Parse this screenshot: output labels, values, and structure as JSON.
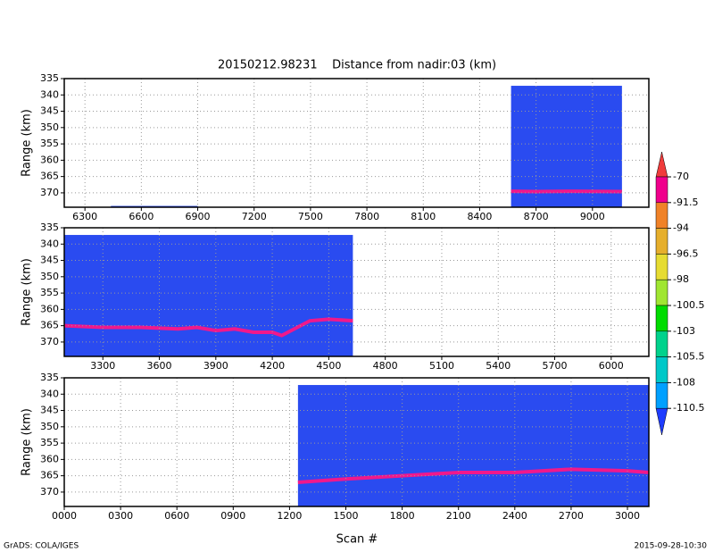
{
  "page": {
    "title": "20150212.98231    Distance from nadir:03 (km)",
    "xlabel": "Scan #",
    "footer_left": "GrADS: COLA/IGES",
    "footer_right": "2015-09-28-10:30"
  },
  "chart_data": [
    {
      "type": "curtain",
      "ylabel": "Range (km)",
      "xlim": [
        6190,
        9300
      ],
      "ylim": [
        374.4,
        335
      ],
      "xticks": [
        6300,
        6600,
        6900,
        7200,
        7500,
        7800,
        8100,
        8400,
        8700,
        9000
      ],
      "yticks": [
        335,
        340,
        345,
        350,
        355,
        360,
        365,
        370
      ],
      "grid": true,
      "color": "#2a4bf0",
      "coverage": [
        {
          "x": [
            6438,
            6900
          ],
          "top": 374.0
        },
        {
          "x": [
            8567,
            9157
          ],
          "top": 337.2
        }
      ],
      "series": [
        {
          "color": "#f0188c",
          "x": [
            8567,
            8700,
            8900,
            9157
          ],
          "values": [
            369.5,
            369.6,
            369.5,
            369.6
          ]
        }
      ]
    },
    {
      "type": "curtain",
      "ylabel": "Range (km)",
      "xlim": [
        3095,
        6200
      ],
      "ylim": [
        374.4,
        335
      ],
      "xticks": [
        3300,
        3600,
        3900,
        4200,
        4500,
        4800,
        5100,
        5400,
        5700,
        6000
      ],
      "yticks": [
        335,
        340,
        345,
        350,
        355,
        360,
        365,
        370
      ],
      "grid": true,
      "color": "#2a4bf0",
      "coverage": [
        {
          "x": [
            3095,
            4628
          ],
          "top": 337.2
        }
      ],
      "series": [
        {
          "color": "#f0188c",
          "x": [
            3095,
            3300,
            3500,
            3700,
            3800,
            3900,
            4000,
            4100,
            4200,
            4250,
            4300,
            4400,
            4500,
            4628
          ],
          "values": [
            365,
            365.5,
            365.5,
            366,
            365.5,
            366.5,
            366,
            367,
            367,
            368,
            366.5,
            363.5,
            363,
            363.5
          ]
        }
      ]
    },
    {
      "type": "curtain",
      "ylabel": "Range (km)",
      "xlim": [
        0,
        3114
      ],
      "ylim": [
        374.4,
        335
      ],
      "xticks": [
        {
          "value": 0,
          "label": "0000"
        },
        {
          "value": 300,
          "label": "0300"
        },
        {
          "value": 600,
          "label": "0600"
        },
        {
          "value": 900,
          "label": "0900"
        },
        1200,
        1500,
        1800,
        2100,
        2400,
        2700,
        3000
      ],
      "yticks": [
        335,
        340,
        345,
        350,
        355,
        360,
        365,
        370
      ],
      "grid": true,
      "color": "#2a4bf0",
      "coverage": [
        {
          "x": [
            1245,
            3114
          ],
          "top": 337.2
        }
      ],
      "series": [
        {
          "color": "#f0188c",
          "x": [
            1245,
            1500,
            1800,
            2100,
            2400,
            2700,
            3000,
            3114
          ],
          "values": [
            367,
            366,
            365,
            364,
            364,
            363,
            363.5,
            364
          ]
        }
      ]
    }
  ],
  "colorbar": {
    "levels": [
      -70,
      -91.5,
      -94,
      -96.5,
      -98,
      -100.5,
      -103,
      -105.5,
      -108,
      -110.5
    ],
    "colors": [
      "#f03c3c",
      "#f0008c",
      "#f08228",
      "#e6af2d",
      "#e6dc32",
      "#a0e632",
      "#00dc00",
      "#00d28c",
      "#00c8c8",
      "#00a0ff",
      "#1e3cff"
    ]
  }
}
